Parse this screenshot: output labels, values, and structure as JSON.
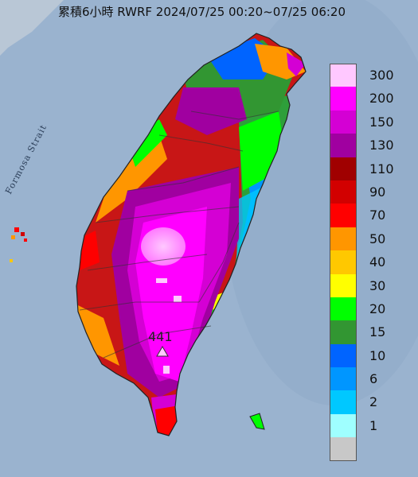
{
  "title": "累積6小時 RWRF 2024/07/25 00:20~07/25 06:20",
  "strait_label": "Formosa Strait",
  "peak_value": "441",
  "colors": {
    "sea": "#9ab3cf",
    "land_base": "#3a9b3a"
  },
  "legend": [
    {
      "label": "300",
      "color": "#ffc8ff"
    },
    {
      "label": "200",
      "color": "#ff00ff"
    },
    {
      "label": "150",
      "color": "#d400d4"
    },
    {
      "label": "130",
      "color": "#a000a0"
    },
    {
      "label": "110",
      "color": "#a00000"
    },
    {
      "label": "90",
      "color": "#d20000"
    },
    {
      "label": "70",
      "color": "#ff0000"
    },
    {
      "label": "50",
      "color": "#ff9600"
    },
    {
      "label": "40",
      "color": "#ffc800"
    },
    {
      "label": "30",
      "color": "#ffff00"
    },
    {
      "label": "20",
      "color": "#00ff00"
    },
    {
      "label": "15",
      "color": "#329632"
    },
    {
      "label": "10",
      "color": "#0064ff"
    },
    {
      "label": "6",
      "color": "#0096ff"
    },
    {
      "label": "2",
      "color": "#00c8ff"
    },
    {
      "label": "1",
      "color": "#9fffff"
    },
    {
      "label": "",
      "color": "#c8c8c8"
    }
  ]
}
